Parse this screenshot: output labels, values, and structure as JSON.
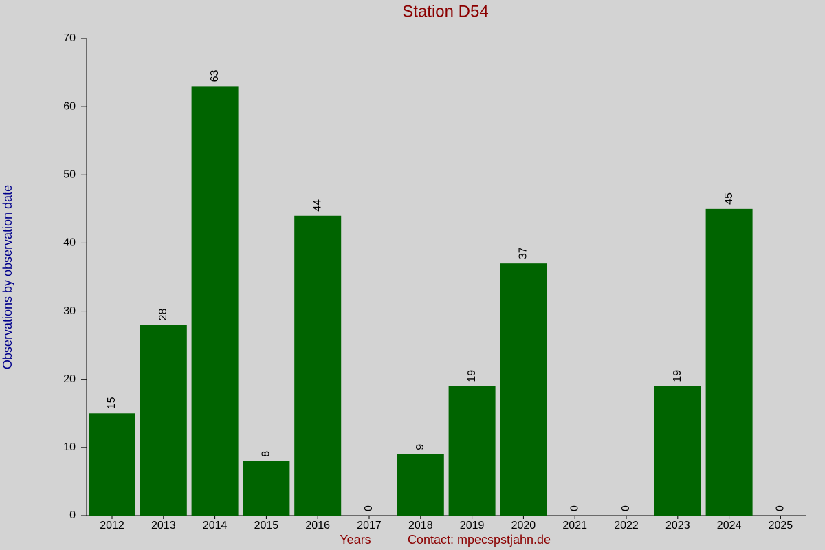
{
  "chart_data": {
    "type": "bar",
    "title": "Station D54",
    "x_label": "Years",
    "contact": "Contact: mpecspstjahn.de",
    "y_label": "Observations by observation date",
    "categories": [
      "2012",
      "2013",
      "2014",
      "2015",
      "2016",
      "2017",
      "2018",
      "2019",
      "2020",
      "2021",
      "2022",
      "2023",
      "2024",
      "2025"
    ],
    "values": [
      15,
      28,
      63,
      8,
      44,
      0,
      9,
      19,
      37,
      0,
      0,
      19,
      45,
      0
    ],
    "color": "#006400",
    "ylim": [
      0,
      70
    ],
    "yticks": [
      0,
      10,
      20,
      30,
      40,
      50,
      60,
      70
    ],
    "grid": false
  }
}
